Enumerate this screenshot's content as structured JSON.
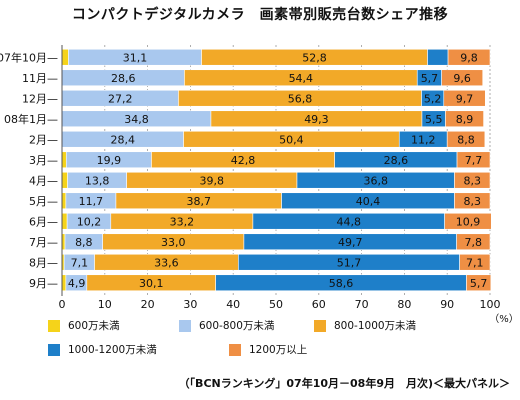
{
  "chart_data": {
    "type": "bar",
    "orientation": "horizontal",
    "stacked": true,
    "title": "コンパクトデジタルカメラ　画素帯別販売台数シェア推移",
    "categories": [
      "07年10月",
      "11月",
      "12月",
      "08年1月",
      "2月",
      "3月",
      "4月",
      "5月",
      "6月",
      "7月",
      "8月",
      "9月"
    ],
    "series": [
      {
        "name": "600万未満",
        "color": "#f5d31a",
        "values": [
          1.5,
          0,
          0,
          0,
          0,
          1.0,
          1.3,
          0.9,
          1.2,
          0.7,
          0.5,
          0.9
        ],
        "labels": [
          "",
          "",
          "",
          "",
          "",
          "",
          "",
          "",
          "",
          "",
          "",
          ""
        ]
      },
      {
        "name": "600-800万未満",
        "color": "#a9c8ee",
        "values": [
          31.1,
          28.6,
          27.2,
          34.8,
          28.4,
          19.9,
          13.8,
          11.7,
          10.2,
          8.8,
          7.1,
          4.9
        ],
        "labels": [
          "31,1",
          "28,6",
          "27,2",
          "34,8",
          "28,4",
          "19,9",
          "13,8",
          "11,7",
          "10,2",
          "8,8",
          "7,1",
          "4,9"
        ]
      },
      {
        "name": "800-1000万未満",
        "color": "#f2a928",
        "values": [
          52.8,
          54.4,
          56.8,
          49.3,
          50.4,
          42.8,
          39.8,
          38.7,
          33.2,
          33.0,
          33.6,
          30.1
        ],
        "labels": [
          "52,8",
          "54,4",
          "56,8",
          "49,3",
          "50,4",
          "42,8",
          "39,8",
          "38,7",
          "33,2",
          "33,0",
          "33,6",
          "30,1"
        ]
      },
      {
        "name": "1000-1200万未満",
        "color": "#1e7fc9",
        "values": [
          4.8,
          5.7,
          5.2,
          5.5,
          11.2,
          28.6,
          36.8,
          40.4,
          44.8,
          49.7,
          51.7,
          58.6
        ],
        "labels": [
          "",
          "5,7",
          "5,2",
          "5,5",
          "11,2",
          "28,6",
          "36,8",
          "40,4",
          "44,8",
          "49,7",
          "51,7",
          "58,6"
        ]
      },
      {
        "name": "1200万以上",
        "color": "#ef8f44",
        "values": [
          9.8,
          9.6,
          9.7,
          8.9,
          8.8,
          7.7,
          8.3,
          8.3,
          10.9,
          7.8,
          7.1,
          5.7
        ],
        "labels": [
          "9,8",
          "9,6",
          "9,7",
          "8,9",
          "8,8",
          "7,7",
          "8,3",
          "8,3",
          "10,9",
          "7,8",
          "7,1",
          "5,7"
        ]
      }
    ],
    "xlim": [
      0,
      100
    ],
    "xticks": [
      "0",
      "10",
      "20",
      "30",
      "40",
      "50",
      "60",
      "70",
      "80",
      "90",
      "100"
    ],
    "unit": "（%）",
    "grid": true,
    "legend_position": "bottom-left"
  },
  "source": "（「BCNランキング」07年10月－08年9月　月次)＜最大パネル＞"
}
